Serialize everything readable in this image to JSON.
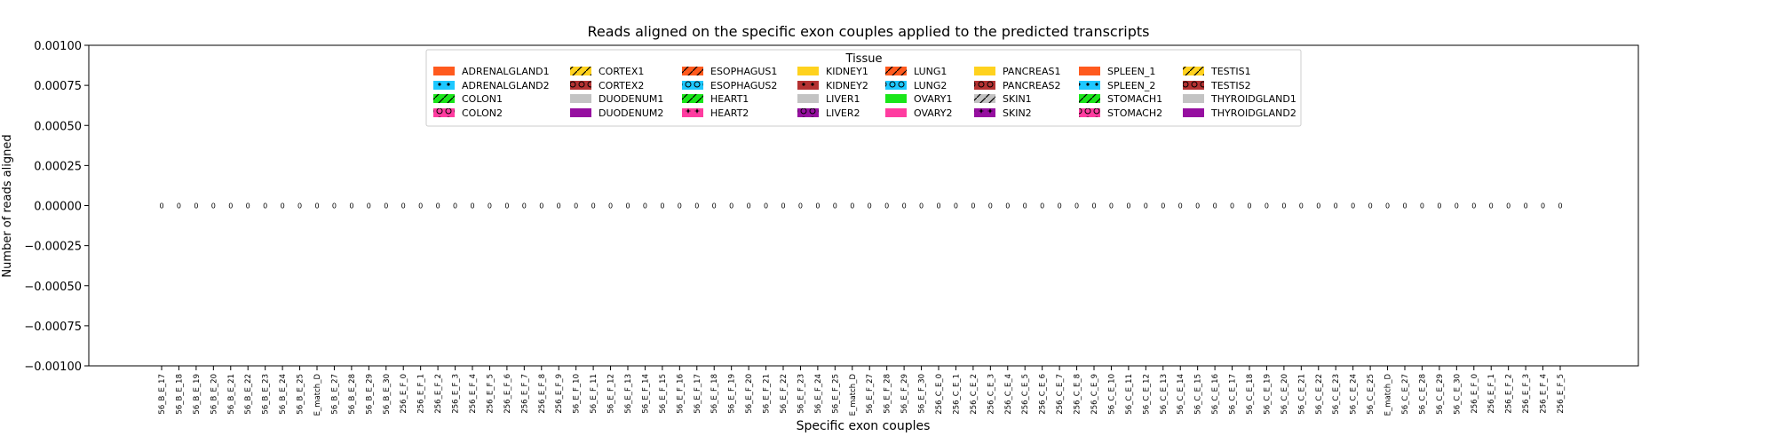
{
  "chart_data": {
    "type": "bar",
    "title": "Reads aligned on the specific exon couples applied to the predicted transcripts",
    "xlabel": "Specific exon couples",
    "ylabel": "Number of reads aligned",
    "ylim": [
      -0.001,
      0.001
    ],
    "yticks": [
      "0.00100",
      "0.00075",
      "0.00050",
      "0.00025",
      "0.00000",
      "−0.00025",
      "−0.00050",
      "−0.00075",
      "−0.00100"
    ],
    "ytick_values": [
      0.001,
      0.00075,
      0.0005,
      0.00025,
      0,
      -0.00025,
      -0.0005,
      -0.00075,
      -0.001
    ],
    "grid": false,
    "legend_title": "Tissue",
    "legend_placement": "upper center",
    "categories": [
      "56_B_E_17",
      "56_B_E_18",
      "56_B_E_19",
      "56_B_E_20",
      "56_B_E_21",
      "56_B_E_22",
      "56_B_E_23",
      "56_B_E_24",
      "56_B_E_25",
      "E_match_D",
      "56_B_E_27",
      "56_B_E_28",
      "56_B_E_29",
      "56_B_E_30",
      "256_E_F_0",
      "256_E_F_1",
      "256_E_F_2",
      "256_E_F_3",
      "256_E_F_4",
      "256_E_F_5",
      "256_E_F_6",
      "256_E_F_7",
      "256_E_F_8",
      "256_E_F_9",
      "56_E_F_10",
      "56_E_F_11",
      "56_E_F_12",
      "56_E_F_13",
      "56_E_F_14",
      "56_E_F_15",
      "56_E_F_16",
      "56_E_F_17",
      "56_E_F_18",
      "56_E_F_19",
      "56_E_F_20",
      "56_E_F_21",
      "56_E_F_22",
      "56_E_F_23",
      "56_E_F_24",
      "56_E_F_25",
      "E_match_D",
      "56_E_F_27",
      "56_E_F_28",
      "56_E_F_29",
      "56_E_F_30",
      "256_C_E_0",
      "256_C_E_1",
      "256_C_E_2",
      "256_C_E_3",
      "256_C_E_4",
      "256_C_E_5",
      "256_C_E_6",
      "256_C_E_7",
      "256_C_E_8",
      "256_C_E_9",
      "56_C_E_10",
      "56_C_E_11",
      "56_C_E_12",
      "56_C_E_13",
      "56_C_E_14",
      "56_C_E_15",
      "56_C_E_16",
      "56_C_E_17",
      "56_C_E_18",
      "56_C_E_19",
      "56_C_E_20",
      "56_C_E_21",
      "56_C_E_22",
      "56_C_E_23",
      "56_C_E_24",
      "56_C_E_25",
      "E_match_D",
      "56_C_E_27",
      "56_C_E_28",
      "56_C_E_29",
      "56_C_E_30",
      "256_E_F_0",
      "256_E_F_1",
      "256_E_F_2",
      "256_E_F_3",
      "256_E_F_4",
      "256_E_F_5"
    ],
    "data_labels": "0",
    "series": [
      {
        "name": "ADRENALGLAND1",
        "color": "#ff5a1e",
        "pattern": "none"
      },
      {
        "name": "ADRENALGLAND2",
        "color": "#1ec8ff",
        "pattern": "dots"
      },
      {
        "name": "COLON1",
        "color": "#19e619",
        "pattern": "slash"
      },
      {
        "name": "COLON2",
        "color": "#ff3ca0",
        "pattern": "rings"
      },
      {
        "name": "CORTEX1",
        "color": "#ffd21e",
        "pattern": "slash"
      },
      {
        "name": "CORTEX2",
        "color": "#b43232",
        "pattern": "rings"
      },
      {
        "name": "DUODENUM1",
        "color": "#c3c3c3",
        "pattern": "none"
      },
      {
        "name": "DUODENUM2",
        "color": "#960fa0",
        "pattern": "none"
      },
      {
        "name": "ESOPHAGUS1",
        "color": "#ff5a1e",
        "pattern": "slash"
      },
      {
        "name": "ESOPHAGUS2",
        "color": "#1ec8ff",
        "pattern": "rings"
      },
      {
        "name": "HEART1",
        "color": "#19e619",
        "pattern": "slash"
      },
      {
        "name": "HEART2",
        "color": "#ff3ca0",
        "pattern": "stars"
      },
      {
        "name": "KIDNEY1",
        "color": "#ffd21e",
        "pattern": "none"
      },
      {
        "name": "KIDNEY2",
        "color": "#b43232",
        "pattern": "dots"
      },
      {
        "name": "LIVER1",
        "color": "#c3c3c3",
        "pattern": "none"
      },
      {
        "name": "LIVER2",
        "color": "#960fa0",
        "pattern": "rings"
      },
      {
        "name": "LUNG1",
        "color": "#ff5a1e",
        "pattern": "slash"
      },
      {
        "name": "LUNG2",
        "color": "#1ec8ff",
        "pattern": "rings"
      },
      {
        "name": "OVARY1",
        "color": "#19e619",
        "pattern": "none"
      },
      {
        "name": "OVARY2",
        "color": "#ff3ca0",
        "pattern": "none"
      },
      {
        "name": "PANCREAS1",
        "color": "#ffd21e",
        "pattern": "none"
      },
      {
        "name": "PANCREAS2",
        "color": "#b43232",
        "pattern": "rings"
      },
      {
        "name": "SKIN1",
        "color": "#c3c3c3",
        "pattern": "slash"
      },
      {
        "name": "SKIN2",
        "color": "#960fa0",
        "pattern": "stars"
      },
      {
        "name": "SPLEEN_1",
        "color": "#ff5a1e",
        "pattern": "none"
      },
      {
        "name": "SPLEEN_2",
        "color": "#1ec8ff",
        "pattern": "dots"
      },
      {
        "name": "STOMACH1",
        "color": "#19e619",
        "pattern": "slash"
      },
      {
        "name": "STOMACH2",
        "color": "#ff3ca0",
        "pattern": "rings"
      },
      {
        "name": "TESTIS1",
        "color": "#ffd21e",
        "pattern": "slash"
      },
      {
        "name": "TESTIS2",
        "color": "#b43232",
        "pattern": "rings"
      },
      {
        "name": "THYROIDGLAND1",
        "color": "#c3c3c3",
        "pattern": "none"
      },
      {
        "name": "THYROIDGLAND2",
        "color": "#960fa0",
        "pattern": "none"
      }
    ]
  }
}
